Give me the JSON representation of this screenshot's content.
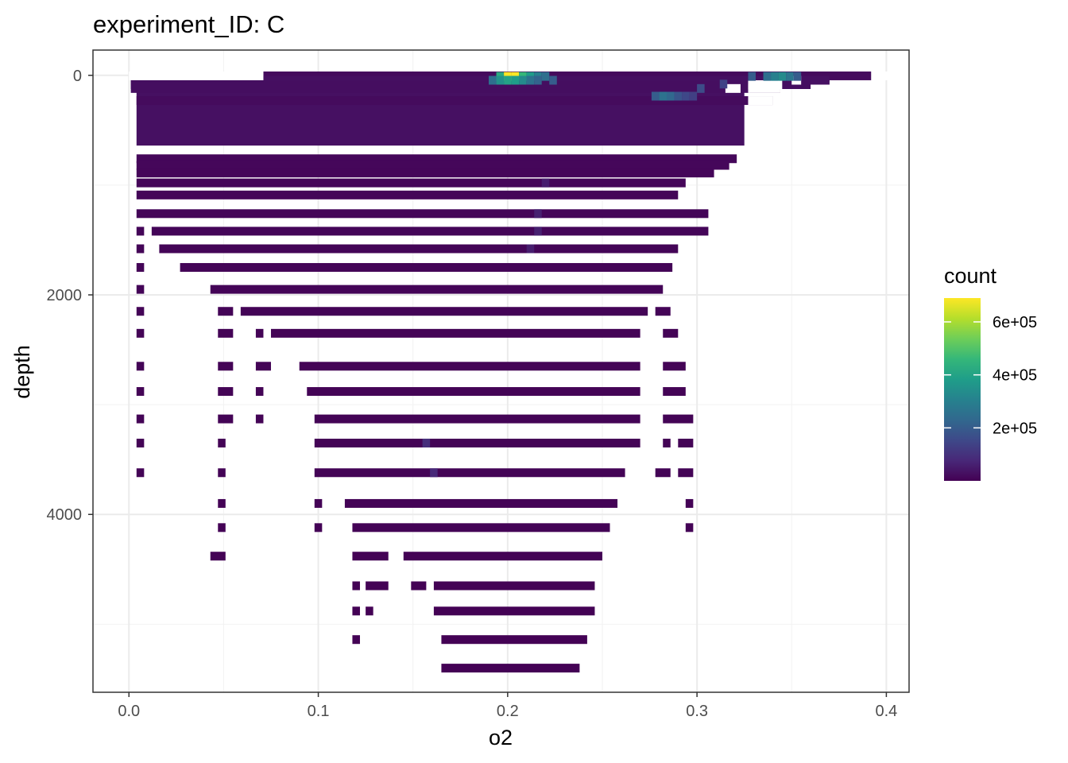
{
  "chart_data": {
    "type": "heatmap",
    "title": "experiment_ID: C",
    "xlabel": "o2",
    "ylabel": "depth",
    "xlim": [
      -0.019,
      0.412
    ],
    "ylim": [
      5620,
      -230
    ],
    "y_reversed": true,
    "x_ticks": [
      0.0,
      0.1,
      0.2,
      0.3,
      0.4
    ],
    "x_tick_labels": [
      "0.0",
      "0.1",
      "0.2",
      "0.3",
      "0.4"
    ],
    "y_ticks": [
      0,
      2000,
      4000
    ],
    "y_tick_labels": [
      "0",
      "2000",
      "4000"
    ],
    "x_minor_ticks": [
      0.05,
      0.15,
      0.25,
      0.35
    ],
    "y_minor_ticks": [
      1000,
      3000,
      5000
    ],
    "grid": true,
    "bin_width": 0.004,
    "fill_scale": {
      "name": "count",
      "colormap": "viridis",
      "min": 1,
      "max": 690000,
      "breaks": [
        200000,
        400000,
        600000
      ],
      "break_labels": [
        "2e+05",
        "4e+05",
        "6e+05"
      ],
      "colors": [
        "#440154",
        "#482878",
        "#3e4989",
        "#31688e",
        "#26828e",
        "#1f9e89",
        "#35b779",
        "#6ece58",
        "#b5de2b",
        "#fde725"
      ]
    },
    "legend_position": "right",
    "solid_block": {
      "depth_from": 150,
      "depth_to": 640,
      "segments": [
        [
          0.004,
          0.325
        ]
      ],
      "value": 30000
    },
    "rows": [
      {
        "depth": 5,
        "segments": [
          [
            0.071,
            0.392
          ]
        ],
        "value": 20000
      },
      {
        "depth": 45,
        "segments": [
          [
            0.001,
            0.37
          ]
        ],
        "value": 30000
      },
      {
        "depth": 85,
        "segments": [
          [
            0.001,
            0.36
          ]
        ],
        "value": 25000
      },
      {
        "depth": 120,
        "segments": [
          [
            0.001,
            0.344
          ]
        ],
        "value": 25000
      },
      {
        "depth": 230,
        "segments": [
          [
            0.004,
            0.34
          ]
        ],
        "value": 20000
      },
      {
        "depth": 760,
        "segments": [
          [
            0.004,
            0.321
          ]
        ],
        "value": 12000
      },
      {
        "depth": 820,
        "segments": [
          [
            0.004,
            0.317
          ]
        ],
        "value": 12000
      },
      {
        "depth": 890,
        "segments": [
          [
            0.004,
            0.309
          ]
        ],
        "value": 10000
      },
      {
        "depth": 980,
        "segments": [
          [
            0.004,
            0.294
          ]
        ],
        "value": 10000
      },
      {
        "depth": 1090,
        "segments": [
          [
            0.004,
            0.29
          ]
        ],
        "value": 9000
      },
      {
        "depth": 1260,
        "segments": [
          [
            0.004,
            0.306
          ]
        ],
        "value": 8000
      },
      {
        "depth": 1420,
        "segments": [
          [
            0.004,
            0.008
          ],
          [
            0.012,
            0.306
          ]
        ],
        "value": 8000
      },
      {
        "depth": 1580,
        "segments": [
          [
            0.004,
            0.008
          ],
          [
            0.016,
            0.29
          ]
        ],
        "value": 7000
      },
      {
        "depth": 1750,
        "segments": [
          [
            0.004,
            0.008
          ],
          [
            0.027,
            0.287
          ]
        ],
        "value": 7000
      },
      {
        "depth": 1950,
        "segments": [
          [
            0.004,
            0.008
          ],
          [
            0.043,
            0.282
          ]
        ],
        "value": 6000
      },
      {
        "depth": 2150,
        "segments": [
          [
            0.004,
            0.008
          ],
          [
            0.047,
            0.055
          ],
          [
            0.059,
            0.274
          ],
          [
            0.278,
            0.286
          ]
        ],
        "value": 6000
      },
      {
        "depth": 2350,
        "segments": [
          [
            0.004,
            0.008
          ],
          [
            0.047,
            0.055
          ],
          [
            0.067,
            0.071
          ],
          [
            0.075,
            0.27
          ],
          [
            0.282,
            0.29
          ]
        ],
        "value": 5000
      },
      {
        "depth": 2650,
        "segments": [
          [
            0.004,
            0.008
          ],
          [
            0.047,
            0.055
          ],
          [
            0.067,
            0.075
          ],
          [
            0.09,
            0.27
          ],
          [
            0.282,
            0.294
          ]
        ],
        "value": 5000
      },
      {
        "depth": 2880,
        "segments": [
          [
            0.004,
            0.008
          ],
          [
            0.047,
            0.055
          ],
          [
            0.067,
            0.071
          ],
          [
            0.094,
            0.27
          ],
          [
            0.282,
            0.294
          ]
        ],
        "value": 5000
      },
      {
        "depth": 3130,
        "segments": [
          [
            0.004,
            0.008
          ],
          [
            0.047,
            0.055
          ],
          [
            0.067,
            0.071
          ],
          [
            0.098,
            0.27
          ],
          [
            0.282,
            0.298
          ]
        ],
        "value": 5000
      },
      {
        "depth": 3350,
        "segments": [
          [
            0.004,
            0.008
          ],
          [
            0.047,
            0.051
          ],
          [
            0.098,
            0.27
          ],
          [
            0.282,
            0.286
          ],
          [
            0.29,
            0.298
          ]
        ],
        "value": 5000
      },
      {
        "depth": 3620,
        "segments": [
          [
            0.004,
            0.008
          ],
          [
            0.047,
            0.051
          ],
          [
            0.098,
            0.262
          ],
          [
            0.278,
            0.286
          ],
          [
            0.29,
            0.298
          ]
        ],
        "value": 5000
      },
      {
        "depth": 3900,
        "segments": [
          [
            0.047,
            0.051
          ],
          [
            0.098,
            0.102
          ],
          [
            0.114,
            0.258
          ],
          [
            0.294,
            0.298
          ]
        ],
        "value": 4000
      },
      {
        "depth": 4120,
        "segments": [
          [
            0.047,
            0.051
          ],
          [
            0.098,
            0.102
          ],
          [
            0.118,
            0.254
          ],
          [
            0.294,
            0.298
          ]
        ],
        "value": 4000
      },
      {
        "depth": 4380,
        "segments": [
          [
            0.043,
            0.051
          ],
          [
            0.118,
            0.137
          ],
          [
            0.145,
            0.25
          ]
        ],
        "value": 3000
      },
      {
        "depth": 4650,
        "segments": [
          [
            0.118,
            0.122
          ],
          [
            0.125,
            0.137
          ],
          [
            0.149,
            0.157
          ],
          [
            0.161,
            0.246
          ]
        ],
        "value": 3000
      },
      {
        "depth": 4880,
        "segments": [
          [
            0.118,
            0.122
          ],
          [
            0.125,
            0.129
          ],
          [
            0.161,
            0.246
          ]
        ],
        "value": 2500
      },
      {
        "depth": 5140,
        "segments": [
          [
            0.118,
            0.122
          ],
          [
            0.165,
            0.242
          ]
        ],
        "value": 2500
      },
      {
        "depth": 5400,
        "segments": [
          [
            0.165,
            0.238
          ]
        ],
        "value": 2000
      }
    ],
    "hotspots": [
      {
        "o2": 0.2,
        "depth": 10,
        "value": 690000
      },
      {
        "o2": 0.204,
        "depth": 10,
        "value": 690000
      },
      {
        "o2": 0.196,
        "depth": 10,
        "value": 420000
      },
      {
        "o2": 0.208,
        "depth": 10,
        "value": 460000
      },
      {
        "o2": 0.212,
        "depth": 10,
        "value": 380000
      },
      {
        "o2": 0.216,
        "depth": 10,
        "value": 300000
      },
      {
        "o2": 0.22,
        "depth": 10,
        "value": 250000
      },
      {
        "o2": 0.196,
        "depth": 45,
        "value": 350000
      },
      {
        "o2": 0.2,
        "depth": 45,
        "value": 400000
      },
      {
        "o2": 0.204,
        "depth": 45,
        "value": 380000
      },
      {
        "o2": 0.208,
        "depth": 45,
        "value": 330000
      },
      {
        "o2": 0.212,
        "depth": 45,
        "value": 260000
      },
      {
        "o2": 0.216,
        "depth": 45,
        "value": 220000
      },
      {
        "o2": 0.224,
        "depth": 45,
        "value": 200000
      },
      {
        "o2": 0.192,
        "depth": 45,
        "value": 250000
      },
      {
        "o2": 0.337,
        "depth": 10,
        "value": 250000
      },
      {
        "o2": 0.341,
        "depth": 10,
        "value": 300000
      },
      {
        "o2": 0.345,
        "depth": 10,
        "value": 330000
      },
      {
        "o2": 0.349,
        "depth": 10,
        "value": 270000
      },
      {
        "o2": 0.329,
        "depth": 10,
        "value": 200000
      },
      {
        "o2": 0.353,
        "depth": 10,
        "value": 200000
      },
      {
        "o2": 0.282,
        "depth": 190,
        "value": 260000
      },
      {
        "o2": 0.286,
        "depth": 190,
        "value": 230000
      },
      {
        "o2": 0.278,
        "depth": 190,
        "value": 200000
      },
      {
        "o2": 0.29,
        "depth": 190,
        "value": 180000
      },
      {
        "o2": 0.294,
        "depth": 190,
        "value": 150000
      },
      {
        "o2": 0.298,
        "depth": 190,
        "value": 130000
      },
      {
        "o2": 0.302,
        "depth": 120,
        "value": 160000
      },
      {
        "o2": 0.314,
        "depth": 80,
        "value": 140000
      },
      {
        "o2": 0.157,
        "depth": 3350,
        "value": 90000
      },
      {
        "o2": 0.161,
        "depth": 3620,
        "value": 80000
      },
      {
        "o2": 0.216,
        "depth": 1260,
        "value": 60000
      },
      {
        "o2": 0.216,
        "depth": 1420,
        "value": 60000
      },
      {
        "o2": 0.212,
        "depth": 1580,
        "value": 55000
      },
      {
        "o2": 0.22,
        "depth": 980,
        "value": 55000
      }
    ],
    "gaps": [
      {
        "depth": 5,
        "segments": [
          [
            0.0,
            0.071
          ],
          [
            0.392,
            0.412
          ]
        ]
      },
      {
        "depth": 120,
        "segments": [
          [
            0.315,
            0.323
          ],
          [
            0.327,
            0.344
          ]
        ]
      },
      {
        "depth": 45,
        "segments": [
          [
            0.35,
            0.355
          ]
        ]
      },
      {
        "depth": 85,
        "segments": [
          [
            0.327,
            0.345
          ]
        ]
      },
      {
        "depth": 230,
        "segments": [
          [
            0.327,
            0.34
          ]
        ]
      }
    ]
  }
}
